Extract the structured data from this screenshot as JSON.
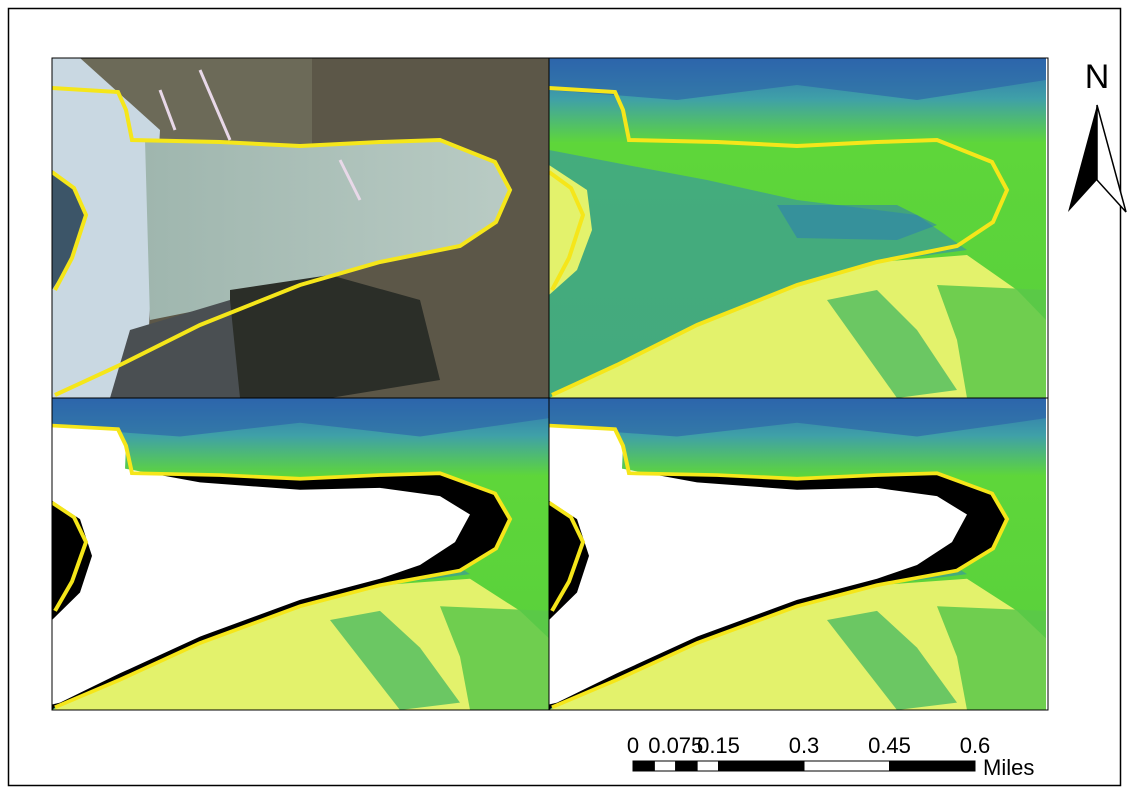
{
  "north_label": "N",
  "scale_bar": {
    "ticks": [
      0,
      0.075,
      0.15,
      0.3,
      0.45,
      0.6
    ],
    "unit": "Miles"
  }
}
